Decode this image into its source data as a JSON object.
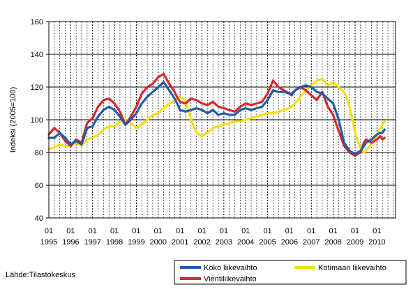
{
  "chart_data": {
    "type": "line",
    "ylabel": "Indeksi (2005=100)",
    "ylim": [
      40,
      160
    ],
    "yticks": [
      40,
      60,
      80,
      100,
      120,
      140,
      160
    ],
    "xlabels": [
      {
        "top": "01",
        "bottom": "1995"
      },
      {
        "top": "01",
        "bottom": "1996"
      },
      {
        "top": "01",
        "bottom": "1997"
      },
      {
        "top": "01",
        "bottom": "1998"
      },
      {
        "top": "01",
        "bottom": "1999"
      },
      {
        "top": "01",
        "bottom": "2000"
      },
      {
        "top": "01",
        "bottom": "2001"
      },
      {
        "top": "01",
        "bottom": "2002"
      },
      {
        "top": "01",
        "bottom": "2003"
      },
      {
        "top": "01",
        "bottom": "2004"
      },
      {
        "top": "01",
        "bottom": "2005"
      },
      {
        "top": "01",
        "bottom": "2006"
      },
      {
        "top": "01",
        "bottom": "2007"
      },
      {
        "top": "01",
        "bottom": "2008"
      },
      {
        "top": "01",
        "bottom": "2009"
      },
      {
        "top": "01",
        "bottom": "2010"
      }
    ],
    "xlim": [
      1995.0,
      2010.85
    ],
    "grid": true,
    "legend_position": "bottom-right",
    "series": [
      {
        "name": "Vientiliikevaihto",
        "color": "#d7282f",
        "x": [
          1995.0,
          1995.25,
          1995.5,
          1995.75,
          1996.0,
          1996.25,
          1996.5,
          1996.75,
          1997.0,
          1997.25,
          1997.5,
          1997.75,
          1998.0,
          1998.25,
          1998.5,
          1998.75,
          1999.0,
          1999.25,
          1999.5,
          1999.75,
          2000.0,
          2000.25,
          2000.5,
          2000.75,
          2000.9,
          2001.0,
          2001.25,
          2001.5,
          2001.75,
          2002.0,
          2002.25,
          2002.5,
          2002.75,
          2003.0,
          2003.25,
          2003.5,
          2003.75,
          2004.0,
          2004.25,
          2004.5,
          2004.75,
          2005.0,
          2005.25,
          2005.5,
          2005.75,
          2006.0,
          2006.1,
          2006.25,
          2006.5,
          2006.75,
          2007.0,
          2007.25,
          2007.5,
          2007.75,
          2008.0,
          2008.25,
          2008.5,
          2008.75,
          2009.0,
          2009.1,
          2009.25,
          2009.4,
          2009.5,
          2009.75,
          2010.0,
          2010.15,
          2010.25,
          2010.35
        ],
        "values": [
          91,
          95,
          92,
          87,
          84,
          88,
          86,
          98,
          101,
          108,
          112,
          113,
          110,
          105,
          97,
          102,
          108,
          116,
          120,
          122,
          126,
          128,
          122,
          117,
          113,
          111,
          110,
          113,
          112,
          110,
          109,
          111,
          108,
          107,
          106,
          105,
          108,
          110,
          109,
          110,
          111,
          116,
          124,
          120,
          118,
          116,
          116,
          118,
          120,
          118,
          115,
          112,
          117,
          108,
          103,
          93,
          84,
          80,
          78,
          79,
          80,
          86,
          88,
          86,
          88,
          90,
          88,
          89
        ]
      },
      {
        "name": "Koko liikevaihto",
        "color": "#1f5ca8",
        "x": [
          1995.0,
          1995.25,
          1995.5,
          1995.75,
          1996.0,
          1996.25,
          1996.5,
          1996.75,
          1997.0,
          1997.25,
          1997.5,
          1997.75,
          1998.0,
          1998.25,
          1998.5,
          1998.75,
          1999.0,
          1999.25,
          1999.5,
          1999.75,
          2000.0,
          2000.25,
          2000.5,
          2000.75,
          2000.9,
          2001.0,
          2001.25,
          2001.5,
          2001.75,
          2002.0,
          2002.25,
          2002.5,
          2002.75,
          2003.0,
          2003.25,
          2003.5,
          2003.75,
          2004.0,
          2004.25,
          2004.5,
          2004.75,
          2005.0,
          2005.25,
          2005.5,
          2005.75,
          2006.0,
          2006.1,
          2006.25,
          2006.5,
          2006.75,
          2007.0,
          2007.25,
          2007.5,
          2007.75,
          2008.0,
          2008.25,
          2008.5,
          2008.75,
          2009.0,
          2009.1,
          2009.25,
          2009.4,
          2009.5,
          2009.75,
          2010.0,
          2010.15,
          2010.25,
          2010.35
        ],
        "values": [
          89,
          89,
          92,
          89,
          85,
          87,
          85,
          95,
          96,
          102,
          106,
          108,
          106,
          102,
          97,
          100,
          104,
          110,
          114,
          117,
          120,
          123,
          118,
          113,
          109,
          106,
          105,
          106,
          107,
          106,
          104,
          106,
          103,
          104,
          103,
          103,
          106,
          107,
          106,
          107,
          108,
          112,
          118,
          117,
          117,
          116,
          115,
          118,
          120,
          121,
          120,
          117,
          116,
          113,
          110,
          100,
          86,
          81,
          79,
          80,
          81,
          84,
          86,
          88,
          91,
          92,
          92,
          94
        ]
      },
      {
        "name": "Kotimaan liikevaihto",
        "color": "#f4e20f",
        "x": [
          1995.0,
          1995.25,
          1995.5,
          1995.75,
          1996.0,
          1996.25,
          1996.5,
          1996.75,
          1997.0,
          1997.25,
          1997.5,
          1997.75,
          1998.0,
          1998.25,
          1998.5,
          1998.75,
          1999.0,
          1999.25,
          1999.5,
          1999.75,
          2000.0,
          2000.25,
          2000.5,
          2000.75,
          2000.9,
          2001.0,
          2001.25,
          2001.5,
          2001.75,
          2002.0,
          2002.25,
          2002.5,
          2002.75,
          2003.0,
          2003.25,
          2003.5,
          2003.75,
          2004.0,
          2004.25,
          2004.5,
          2004.75,
          2005.0,
          2005.25,
          2005.5,
          2005.75,
          2006.0,
          2006.1,
          2006.25,
          2006.5,
          2006.75,
          2007.0,
          2007.25,
          2007.5,
          2007.75,
          2008.0,
          2008.25,
          2008.5,
          2008.75,
          2009.0,
          2009.1,
          2009.25,
          2009.4,
          2009.5,
          2009.75,
          2010.0,
          2010.15,
          2010.25,
          2010.35
        ],
        "values": [
          82,
          83,
          85,
          84,
          84,
          86,
          84,
          88,
          89,
          91,
          94,
          96,
          96,
          99,
          100,
          98,
          95,
          97,
          100,
          103,
          104,
          107,
          110,
          112,
          113,
          114,
          112,
          100,
          92,
          90,
          92,
          95,
          96,
          97,
          98,
          99,
          99,
          100,
          101,
          102,
          103,
          104,
          104,
          105,
          106,
          107,
          108,
          110,
          114,
          118,
          121,
          124,
          125,
          121,
          123,
          120,
          117,
          108,
          92,
          88,
          83,
          80,
          81,
          85,
          91,
          95,
          97,
          99
        ]
      }
    ]
  },
  "source_label": "Lähde:Tilastokeskus"
}
